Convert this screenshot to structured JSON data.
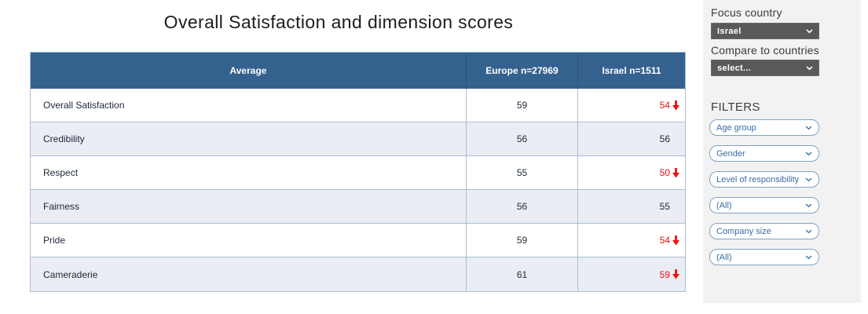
{
  "title": "Overall Satisfaction and dimension scores",
  "table": {
    "headers": [
      "Average",
      "Europe n=27969",
      "Israel n=1511"
    ],
    "rows": [
      {
        "label": "Overall Satisfaction",
        "europe": "59",
        "israel": "54",
        "israel_down": true
      },
      {
        "label": "Credibility",
        "europe": "56",
        "israel": "56",
        "israel_down": false
      },
      {
        "label": "Respect",
        "europe": "55",
        "israel": "50",
        "israel_down": true
      },
      {
        "label": "Fairness",
        "europe": "56",
        "israel": "55",
        "israel_down": false
      },
      {
        "label": "Pride",
        "europe": "59",
        "israel": "54",
        "israel_down": true
      },
      {
        "label": "Cameraderie",
        "europe": "61",
        "israel": "59",
        "israel_down": true
      }
    ]
  },
  "sidebar": {
    "focus_label": "Focus country",
    "focus_value": "Israel",
    "compare_label": "Compare to countries",
    "compare_value": "select...",
    "filters_heading": "FILTERS",
    "filters": [
      "Age group",
      "Gender",
      "Level of responsibility",
      "(All)",
      "Company size",
      "(All)"
    ]
  },
  "icons": {
    "dropdown_chevron": "chevron-down-icon",
    "score_decrease": "down-arrow-icon"
  },
  "colors": {
    "header_bg": "#35618F",
    "alt_row_bg": "#EAEDF4",
    "row_border": "#A9BFD6",
    "negative_red": "#F20D0D",
    "dark_dropdown_bg": "#595959",
    "filter_border": "#7EA2C6",
    "filter_text": "#3A6DA6",
    "sidebar_bg": "#F2F2F2"
  }
}
